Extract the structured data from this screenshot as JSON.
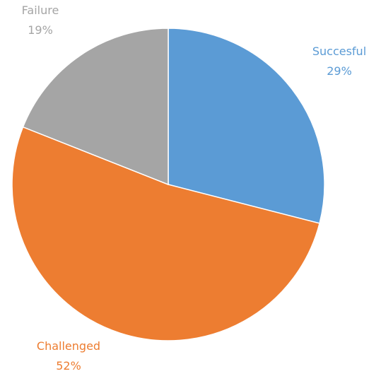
{
  "chart_data": {
    "type": "pie",
    "title": "",
    "slices": [
      {
        "label": "Succesful",
        "value": 29,
        "value_label": "29%",
        "color": "#5B9BD5"
      },
      {
        "label": "Challenged",
        "value": 52,
        "value_label": "52%",
        "color": "#ED7D31"
      },
      {
        "label": "Failure",
        "value": 19,
        "value_label": "19%",
        "color": "#A5A5A5"
      }
    ],
    "start_angle_deg": 0,
    "direction": "clockwise",
    "legend": "none",
    "label_position": "outside"
  }
}
